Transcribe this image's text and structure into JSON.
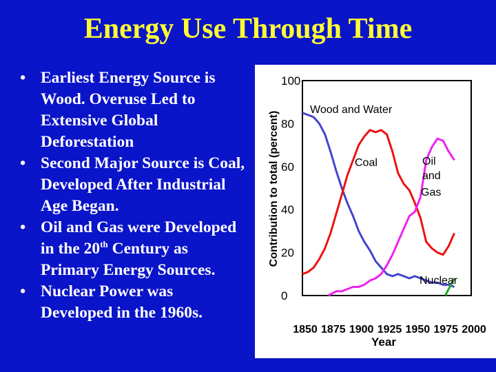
{
  "slide": {
    "title": "Energy Use Through Time",
    "bullets": [
      {
        "text": "Earliest Energy Source is Wood.  Overuse Led to Extensive Global Deforestation"
      },
      {
        "text": "Second Major Source is Coal, Developed After Industrial Age Began."
      },
      {
        "before": "Oil and Gas were Developed  in the 20",
        "sup": "th",
        "after": " Century as Primary Energy Sources."
      },
      {
        "text": "Nuclear Power was Developed in the 1960s."
      }
    ]
  },
  "chart_data": {
    "type": "line",
    "xlabel": "Year",
    "ylabel": "Contribution to total (percent)",
    "xlim": [
      1850,
      2000
    ],
    "ylim": [
      0,
      100
    ],
    "xticks": [
      1850,
      1875,
      1900,
      1925,
      1950,
      1975,
      2000
    ],
    "yticks": [
      0,
      20,
      40,
      60,
      80,
      100
    ],
    "grid": false,
    "annotations": [
      {
        "text": "Wood and Water",
        "series": "wood"
      },
      {
        "text": "Coal",
        "series": "coal"
      },
      {
        "text": "Oil",
        "series": "oil_gas"
      },
      {
        "text": "and",
        "series": "oil_gas"
      },
      {
        "text": "Gas",
        "series": "oil_gas"
      },
      {
        "text": "Nuclear",
        "series": "nuclear"
      }
    ],
    "series": [
      {
        "id": "wood",
        "color": "#4444cc",
        "x": [
          1850,
          1855,
          1860,
          1865,
          1870,
          1875,
          1880,
          1885,
          1890,
          1895,
          1900,
          1905,
          1910,
          1915,
          1920,
          1925,
          1930,
          1935,
          1940,
          1945,
          1950,
          1955,
          1960,
          1965,
          1970,
          1975,
          1980,
          1985
        ],
        "y": [
          85,
          84,
          83,
          80,
          75,
          67,
          58,
          50,
          43,
          37,
          30,
          25,
          21,
          16,
          13,
          10,
          9,
          10,
          9,
          8,
          9,
          8,
          7,
          6,
          6,
          5,
          5,
          4
        ]
      },
      {
        "id": "coal",
        "color": "#ee1111",
        "x": [
          1850,
          1855,
          1860,
          1865,
          1870,
          1875,
          1880,
          1885,
          1890,
          1895,
          1900,
          1905,
          1910,
          1915,
          1920,
          1925,
          1930,
          1935,
          1940,
          1945,
          1950,
          1955,
          1960,
          1965,
          1970,
          1975,
          1980,
          1985
        ],
        "y": [
          10,
          11,
          13,
          17,
          22,
          29,
          38,
          47,
          56,
          63,
          70,
          74,
          77,
          76,
          77,
          75,
          67,
          57,
          52,
          49,
          43,
          36,
          25,
          22,
          20,
          19,
          23,
          29
        ]
      },
      {
        "id": "oil_gas",
        "color": "#ee22ee",
        "x": [
          1873,
          1880,
          1885,
          1890,
          1895,
          1900,
          1905,
          1910,
          1915,
          1920,
          1925,
          1930,
          1935,
          1940,
          1945,
          1950,
          1955,
          1960,
          1965,
          1970,
          1975,
          1980,
          1985
        ],
        "y": [
          0,
          2,
          2,
          3,
          4,
          4,
          5,
          7,
          8,
          10,
          14,
          19,
          25,
          31,
          37,
          39,
          46,
          63,
          69,
          73,
          72,
          67,
          63
        ]
      },
      {
        "id": "nuclear",
        "color": "#22aa22",
        "x": [
          1977,
          1980,
          1985
        ],
        "y": [
          0,
          3,
          8
        ]
      }
    ]
  }
}
